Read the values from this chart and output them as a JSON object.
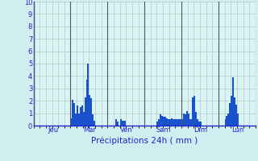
{
  "title": "Précipitations 24h ( mm )",
  "ylim": [
    0,
    10
  ],
  "yticks": [
    0,
    1,
    2,
    3,
    4,
    5,
    6,
    7,
    8,
    9,
    10
  ],
  "background_color": "#d0eef0",
  "plot_bg_color": "#d8f4f4",
  "bar_color": "#1a52cc",
  "grid_color": "#b8c8c0",
  "day_sep_color": "#555566",
  "day_labels": [
    "Jeu",
    "Mar",
    "Ven",
    "Sam",
    "Dim",
    "Lun"
  ],
  "day_positions": [
    0,
    24,
    48,
    72,
    96,
    120
  ],
  "n_bars": 144,
  "values": [
    0,
    0,
    0,
    0,
    0,
    0,
    0,
    0,
    0,
    0,
    0,
    0,
    0,
    0,
    0,
    0,
    0,
    0,
    0,
    0,
    0,
    0,
    0,
    0,
    0.6,
    2.1,
    1.8,
    1.0,
    1.6,
    1.0,
    1.5,
    1.6,
    1.1,
    2.3,
    3.7,
    5.0,
    2.5,
    2.2,
    0.9,
    0.4,
    0,
    0,
    0,
    0,
    0,
    0,
    0,
    0,
    0,
    0,
    0,
    0,
    0,
    0.5,
    0.3,
    0,
    0.5,
    0.4,
    0.4,
    0.4,
    0,
    0,
    0,
    0,
    0,
    0,
    0,
    0,
    0,
    0,
    0,
    0,
    0,
    0,
    0,
    0,
    0,
    0,
    0,
    0,
    0.3,
    0.5,
    0.9,
    0.8,
    0.7,
    0.7,
    0.6,
    0.5,
    0.5,
    0.6,
    0.5,
    0.5,
    0.5,
    0.5,
    0.5,
    0.5,
    0.5,
    1.0,
    0.9,
    1.2,
    1.0,
    0.5,
    0.5,
    2.3,
    2.4,
    1.1,
    0.5,
    0.3,
    0.3,
    0,
    0,
    0,
    0,
    0,
    0,
    0,
    0,
    0,
    0,
    0,
    0,
    0,
    0,
    0,
    0.5,
    0.8,
    1.0,
    1.8,
    2.4,
    3.9,
    2.3,
    1.7,
    1.0,
    0,
    0,
    0,
    0,
    0,
    0,
    0,
    0,
    0,
    0,
    0
  ]
}
